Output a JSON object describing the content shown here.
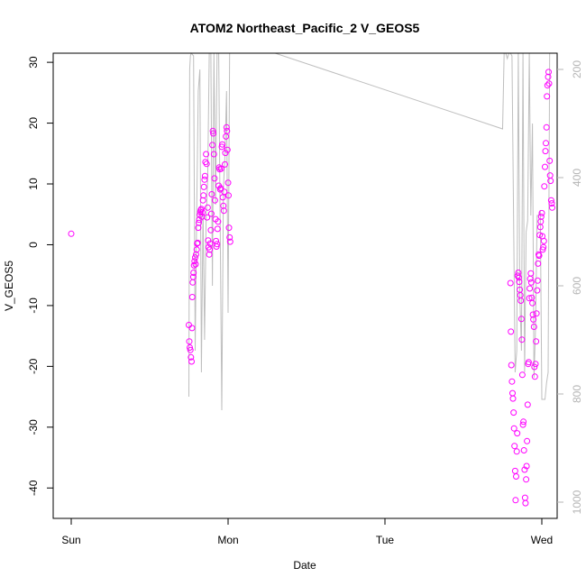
{
  "chart_data": {
    "type": "scatter",
    "title": "ATOM2 Northeast_Pacific_2 V_GEOS5",
    "xlabel": "Date",
    "ylabel": "V_GEOS5",
    "x_ticks": [
      "Sun",
      "Mon",
      "Tue",
      "Wed"
    ],
    "ylim": [
      -45,
      31.5
    ],
    "y_ticks": [
      30,
      20,
      10,
      0,
      -10,
      -20,
      -30,
      -40
    ],
    "y2lim": [
      1030,
      170
    ],
    "y2_ticks": [
      200,
      400,
      600,
      800,
      1000
    ],
    "grid": false,
    "colors": {
      "points": "#ff00ff",
      "secondary_line": "#bebebe",
      "axis": "#000000",
      "secondary_axis": "#b4b4b4"
    },
    "series": [
      {
        "kind": "points",
        "x_unit": "days since Sun 00:00",
        "points": [
          [
            0.0,
            1.8
          ],
          [
            0.75,
            -13.2
          ],
          [
            0.753,
            -15.9
          ],
          [
            0.756,
            -16.9
          ],
          [
            0.76,
            -17.3
          ],
          [
            0.763,
            -18.5
          ],
          [
            0.767,
            -19.2
          ],
          [
            0.77,
            -13.7
          ],
          [
            0.772,
            -8.6
          ],
          [
            0.775,
            -6.2
          ],
          [
            0.778,
            -5.3
          ],
          [
            0.78,
            -4.6
          ],
          [
            0.783,
            -3.4
          ],
          [
            0.786,
            -2.7
          ],
          [
            0.79,
            -2.1
          ],
          [
            0.793,
            -3.2
          ],
          [
            0.796,
            -1.6
          ],
          [
            0.8,
            -0.8
          ],
          [
            0.803,
            0.2
          ],
          [
            0.806,
            0.3
          ],
          [
            0.81,
            2.8
          ],
          [
            0.813,
            3.6
          ],
          [
            0.816,
            4.1
          ],
          [
            0.82,
            4.9
          ],
          [
            0.823,
            5.4
          ],
          [
            0.826,
            5.7
          ],
          [
            0.83,
            5.9
          ],
          [
            0.833,
            4.6
          ],
          [
            0.836,
            5.3
          ],
          [
            0.84,
            7.3
          ],
          [
            0.843,
            8.1
          ],
          [
            0.846,
            9.5
          ],
          [
            0.85,
            10.7
          ],
          [
            0.853,
            11.3
          ],
          [
            0.856,
            13.6
          ],
          [
            0.86,
            14.9
          ],
          [
            0.863,
            13.3
          ],
          [
            0.866,
            4.5
          ],
          [
            0.87,
            6.1
          ],
          [
            0.873,
            0.7
          ],
          [
            0.876,
            -0.4
          ],
          [
            0.88,
            -1.6
          ],
          [
            0.883,
            -0.8
          ],
          [
            0.886,
            0.2
          ],
          [
            0.89,
            2.4
          ],
          [
            0.893,
            5.1
          ],
          [
            0.896,
            8.3
          ],
          [
            0.9,
            16.4
          ],
          [
            0.903,
            18.7
          ],
          [
            0.906,
            18.3
          ],
          [
            0.91,
            14.9
          ],
          [
            0.913,
            10.9
          ],
          [
            0.916,
            7.3
          ],
          [
            0.92,
            4.2
          ],
          [
            0.923,
            0.6
          ],
          [
            0.926,
            -0.3
          ],
          [
            0.93,
            0.1
          ],
          [
            0.933,
            2.6
          ],
          [
            0.936,
            3.8
          ],
          [
            0.94,
            9.7
          ],
          [
            0.943,
            12.7
          ],
          [
            0.946,
            12.4
          ],
          [
            0.95,
            9.1
          ],
          [
            0.953,
            9.3
          ],
          [
            0.956,
            12.5
          ],
          [
            0.96,
            16.1
          ],
          [
            0.963,
            16.5
          ],
          [
            0.966,
            7.8
          ],
          [
            0.97,
            6.4
          ],
          [
            0.973,
            5.6
          ],
          [
            0.976,
            8.7
          ],
          [
            0.98,
            13.2
          ],
          [
            0.983,
            15.1
          ],
          [
            0.986,
            17.8
          ],
          [
            0.99,
            19.3
          ],
          [
            0.993,
            18.7
          ],
          [
            0.996,
            15.6
          ],
          [
            1.0,
            10.2
          ],
          [
            1.003,
            8.1
          ],
          [
            1.006,
            2.8
          ],
          [
            1.01,
            1.2
          ],
          [
            1.013,
            0.5
          ],
          [
            2.8,
            -6.3
          ],
          [
            2.803,
            -14.3
          ],
          [
            2.806,
            -19.8
          ],
          [
            2.81,
            -22.5
          ],
          [
            2.813,
            -24.4
          ],
          [
            2.816,
            -25.3
          ],
          [
            2.82,
            -27.6
          ],
          [
            2.823,
            -30.2
          ],
          [
            2.826,
            -33.1
          ],
          [
            2.83,
            -37.2
          ],
          [
            2.833,
            -42.0
          ],
          [
            2.836,
            -38.1
          ],
          [
            2.84,
            -34.0
          ],
          [
            2.843,
            -31.0
          ],
          [
            2.846,
            -5.1
          ],
          [
            2.85,
            -4.6
          ],
          [
            2.853,
            -5.4
          ],
          [
            2.856,
            -6.1
          ],
          [
            2.86,
            -7.4
          ],
          [
            2.863,
            -8.3
          ],
          [
            2.866,
            -9.2
          ],
          [
            2.87,
            -12.2
          ],
          [
            2.873,
            -15.6
          ],
          [
            2.876,
            -21.4
          ],
          [
            2.88,
            -29.6
          ],
          [
            2.883,
            -29.1
          ],
          [
            2.886,
            -33.8
          ],
          [
            2.89,
            -37.0
          ],
          [
            2.893,
            -41.6
          ],
          [
            2.896,
            -42.5
          ],
          [
            2.9,
            -38.6
          ],
          [
            2.903,
            -36.4
          ],
          [
            2.906,
            -32.3
          ],
          [
            2.91,
            -26.3
          ],
          [
            2.913,
            -19.6
          ],
          [
            2.916,
            -19.3
          ],
          [
            2.92,
            -8.8
          ],
          [
            2.923,
            -7.2
          ],
          [
            2.926,
            -5.6
          ],
          [
            2.93,
            -4.7
          ],
          [
            2.933,
            -6.2
          ],
          [
            2.936,
            -8.7
          ],
          [
            2.94,
            -9.6
          ],
          [
            2.943,
            -11.5
          ],
          [
            2.946,
            -12.3
          ],
          [
            2.95,
            -13.5
          ],
          [
            2.953,
            -20.1
          ],
          [
            2.956,
            -21.7
          ],
          [
            2.96,
            -19.6
          ],
          [
            2.963,
            -15.9
          ],
          [
            2.966,
            -11.3
          ],
          [
            2.97,
            -7.5
          ],
          [
            2.973,
            -5.9
          ],
          [
            2.976,
            -3.1
          ],
          [
            2.98,
            -1.6
          ],
          [
            2.983,
            -1.8
          ],
          [
            2.986,
            1.6
          ],
          [
            2.99,
            2.9
          ],
          [
            2.993,
            3.8
          ],
          [
            2.996,
            4.6
          ],
          [
            3.0,
            5.2
          ],
          [
            3.003,
            1.4
          ],
          [
            3.006,
            -0.8
          ],
          [
            3.01,
            -0.4
          ],
          [
            3.013,
            0.6
          ],
          [
            3.016,
            9.6
          ],
          [
            3.02,
            12.8
          ],
          [
            3.023,
            15.4
          ],
          [
            3.026,
            16.7
          ],
          [
            3.03,
            19.3
          ],
          [
            3.033,
            24.4
          ],
          [
            3.036,
            26.2
          ],
          [
            3.04,
            27.6
          ],
          [
            3.043,
            28.4
          ],
          [
            3.046,
            26.5
          ],
          [
            3.05,
            13.8
          ],
          [
            3.053,
            11.4
          ],
          [
            3.056,
            10.5
          ],
          [
            3.06,
            7.3
          ],
          [
            3.063,
            6.8
          ],
          [
            3.066,
            6.1
          ]
        ]
      },
      {
        "kind": "line",
        "axis": "right",
        "x_unit": "days since Sun 00:00",
        "points": [
          [
            0.75,
            805
          ],
          [
            0.755,
            200
          ],
          [
            0.76,
            175
          ],
          [
            0.765,
            170
          ],
          [
            0.78,
            175
          ],
          [
            0.79,
            720
          ],
          [
            0.8,
            460
          ],
          [
            0.81,
            240
          ],
          [
            0.82,
            200
          ],
          [
            0.83,
            760
          ],
          [
            0.84,
            460
          ],
          [
            0.85,
            700
          ],
          [
            0.86,
            480
          ],
          [
            0.87,
            400
          ],
          [
            0.88,
            160
          ],
          [
            0.89,
            160
          ],
          [
            0.9,
            600
          ],
          [
            0.91,
            160
          ],
          [
            0.92,
            450
          ],
          [
            0.93,
            160
          ],
          [
            0.94,
            170
          ],
          [
            0.95,
            500
          ],
          [
            0.96,
            830
          ],
          [
            0.97,
            420
          ],
          [
            0.98,
            360
          ],
          [
            0.99,
            240
          ],
          [
            1.0,
            650
          ],
          [
            1.01,
            170
          ],
          [
            1.02,
            160
          ],
          [
            1.1,
            140
          ],
          [
            1.3,
            170
          ],
          [
            2.75,
            310
          ],
          [
            2.76,
            170
          ],
          [
            2.77,
            170
          ],
          [
            2.78,
            180
          ],
          [
            2.79,
            170
          ],
          [
            2.8,
            160
          ],
          [
            2.81,
            175
          ],
          [
            2.82,
            480
          ],
          [
            2.83,
            760
          ],
          [
            2.84,
            720
          ],
          [
            2.85,
            170
          ],
          [
            2.86,
            620
          ],
          [
            2.87,
            720
          ],
          [
            2.88,
            170
          ],
          [
            2.89,
            760
          ],
          [
            2.9,
            500
          ],
          [
            2.91,
            480
          ],
          [
            2.92,
            160
          ],
          [
            2.93,
            470
          ],
          [
            2.94,
            300
          ],
          [
            2.95,
            770
          ],
          [
            2.96,
            680
          ],
          [
            2.97,
            470
          ],
          [
            2.98,
            470
          ],
          [
            2.99,
            460
          ],
          [
            3.0,
            810
          ],
          [
            3.01,
            810
          ],
          [
            3.02,
            810
          ],
          [
            3.03,
            780
          ],
          [
            3.04,
            760
          ],
          [
            3.05,
            170
          ]
        ]
      }
    ]
  }
}
